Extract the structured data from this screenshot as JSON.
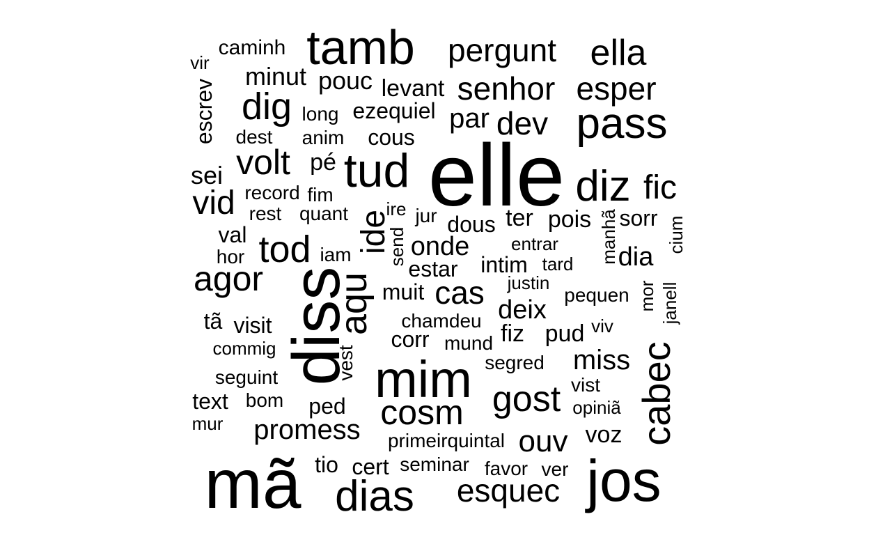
{
  "word_cloud": {
    "color": "#000000",
    "words": [
      {
        "text": "elle"
      },
      {
        "text": "mã"
      },
      {
        "text": "jos"
      },
      {
        "text": "diss"
      },
      {
        "text": "mim"
      },
      {
        "text": "tamb"
      },
      {
        "text": "tud"
      },
      {
        "text": "diz"
      },
      {
        "text": "pass"
      },
      {
        "text": "dias"
      },
      {
        "text": "cabec"
      },
      {
        "text": "ella"
      },
      {
        "text": "aqu"
      },
      {
        "text": "tod"
      },
      {
        "text": "gost"
      },
      {
        "text": "dig"
      },
      {
        "text": "cosm"
      },
      {
        "text": "agor"
      },
      {
        "text": "pergunt"
      },
      {
        "text": "senhor"
      },
      {
        "text": "esper"
      },
      {
        "text": "esquec"
      },
      {
        "text": "volt"
      },
      {
        "text": "fic"
      },
      {
        "text": "vid"
      },
      {
        "text": "ide"
      },
      {
        "text": "cas"
      },
      {
        "text": "dev"
      },
      {
        "text": "promess"
      },
      {
        "text": "ouv"
      },
      {
        "text": "miss"
      },
      {
        "text": "par"
      },
      {
        "text": "onde"
      },
      {
        "text": "deix"
      },
      {
        "text": "minut"
      },
      {
        "text": "pouc"
      },
      {
        "text": "levant"
      },
      {
        "text": "ezequiel"
      },
      {
        "text": "escrev"
      },
      {
        "text": "dia"
      },
      {
        "text": "caminh"
      },
      {
        "text": "cous"
      },
      {
        "text": "sei"
      },
      {
        "text": "pé"
      },
      {
        "text": "dous"
      },
      {
        "text": "ter"
      },
      {
        "text": "pois"
      },
      {
        "text": "sorr"
      },
      {
        "text": "intim"
      },
      {
        "text": "muit"
      },
      {
        "text": "estar"
      },
      {
        "text": "corr"
      },
      {
        "text": "pud"
      },
      {
        "text": "fiz"
      },
      {
        "text": "voz"
      },
      {
        "text": "cert"
      },
      {
        "text": "tio"
      },
      {
        "text": "ped"
      },
      {
        "text": "text"
      },
      {
        "text": "val"
      },
      {
        "text": "visit"
      },
      {
        "text": "tã"
      },
      {
        "text": "vest"
      },
      {
        "text": "dest"
      },
      {
        "text": "anim"
      },
      {
        "text": "long"
      },
      {
        "text": "fim"
      },
      {
        "text": "record"
      },
      {
        "text": "quant"
      },
      {
        "text": "rest"
      },
      {
        "text": "jur"
      },
      {
        "text": "ire"
      },
      {
        "text": "send"
      },
      {
        "text": "iam"
      },
      {
        "text": "hor"
      },
      {
        "text": "entrar"
      },
      {
        "text": "tard"
      },
      {
        "text": "justin"
      },
      {
        "text": "pequen"
      },
      {
        "text": "manhã"
      },
      {
        "text": "cium"
      },
      {
        "text": "mor"
      },
      {
        "text": "janell"
      },
      {
        "text": "chamdeu"
      },
      {
        "text": "mund"
      },
      {
        "text": "viv"
      },
      {
        "text": "commig"
      },
      {
        "text": "segred"
      },
      {
        "text": "seguint"
      },
      {
        "text": "vist"
      },
      {
        "text": "bom"
      },
      {
        "text": "opiniã"
      },
      {
        "text": "mur"
      },
      {
        "text": "primeirquintal"
      },
      {
        "text": "seminar"
      },
      {
        "text": "favor"
      },
      {
        "text": "ver"
      },
      {
        "text": "vir"
      }
    ]
  }
}
